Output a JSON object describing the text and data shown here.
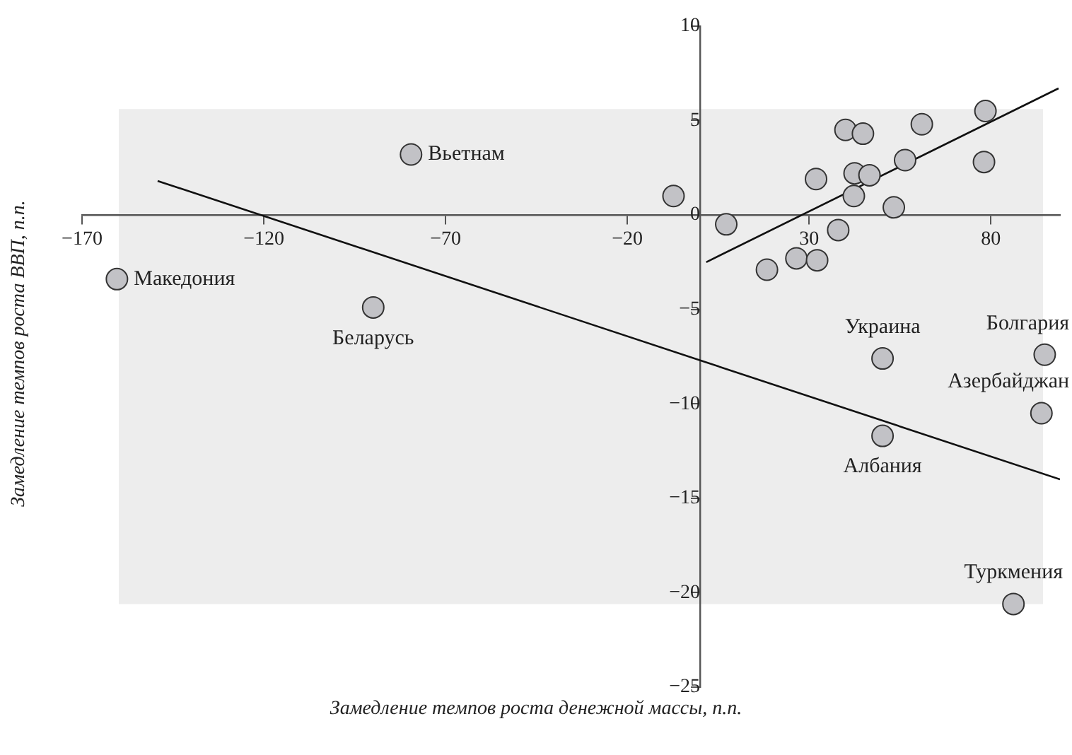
{
  "chart_data": {
    "type": "scatter",
    "xlabel": "Замедление темпов роста денежной массы, п.п.",
    "ylabel": "Замедление темпов роста ВВП, п.п.",
    "xlim": [
      -170,
      99
    ],
    "ylim": [
      -25,
      10
    ],
    "xticks": [
      -170,
      -120,
      -70,
      -20,
      30,
      80
    ],
    "yticks": [
      -25,
      -20,
      -15,
      -10,
      -5,
      0,
      5,
      10
    ],
    "grid": false,
    "legend": false,
    "bands": [
      {
        "axis": "y",
        "from": -20.6,
        "to": 5.6,
        "color": "#ededed"
      }
    ],
    "series": [
      {
        "marker": "circle",
        "color": "#c2c2c6",
        "x": [
          -160.4,
          -89.9,
          -79.5,
          -7.3,
          7.2,
          18.4,
          26.5,
          32.2,
          31.9,
          38.0,
          40.0,
          44.8,
          42.5,
          46.6,
          42.3,
          53.3,
          56.4,
          61.0,
          78.5,
          78.1,
          50.2,
          94.8,
          93.9,
          50.2,
          86.2
        ],
        "values": [
          -3.4,
          -4.9,
          3.2,
          1.0,
          -0.5,
          -2.9,
          -2.3,
          -2.4,
          1.9,
          -0.8,
          4.5,
          4.3,
          2.2,
          2.1,
          1.0,
          0.4,
          2.9,
          4.8,
          5.5,
          2.8,
          -7.6,
          -7.4,
          -10.5,
          -11.7,
          -20.6
        ]
      },
      {
        "type": "line",
        "marker": "none",
        "color": "#111111",
        "x": [
          -149.2,
          99
        ],
        "values": [
          1.8,
          -14.0
        ]
      },
      {
        "marker": "none",
        "color": "#111111",
        "type": "line",
        "x": [
          1.7,
          98.6
        ],
        "values": [
          -2.5,
          6.7
        ]
      }
    ],
    "annotations": [
      {
        "text": "Македония",
        "x": -160.4,
        "y": -3.4
      },
      {
        "text": "Беларусь",
        "x": -89.9,
        "y": -4.9
      },
      {
        "text": "Вьетнам",
        "x": -79.5,
        "y": 3.2
      },
      {
        "text": "Украина",
        "x": 50.2,
        "y": -7.6
      },
      {
        "text": "Болгария",
        "x": 94.8,
        "y": -7.4
      },
      {
        "text": "Азербайджан",
        "x": 93.9,
        "y": -10.5
      },
      {
        "text": "Албания",
        "x": 50.2,
        "y": -11.7
      },
      {
        "text": "Туркмения",
        "x": 86.2,
        "y": -20.6
      }
    ]
  }
}
